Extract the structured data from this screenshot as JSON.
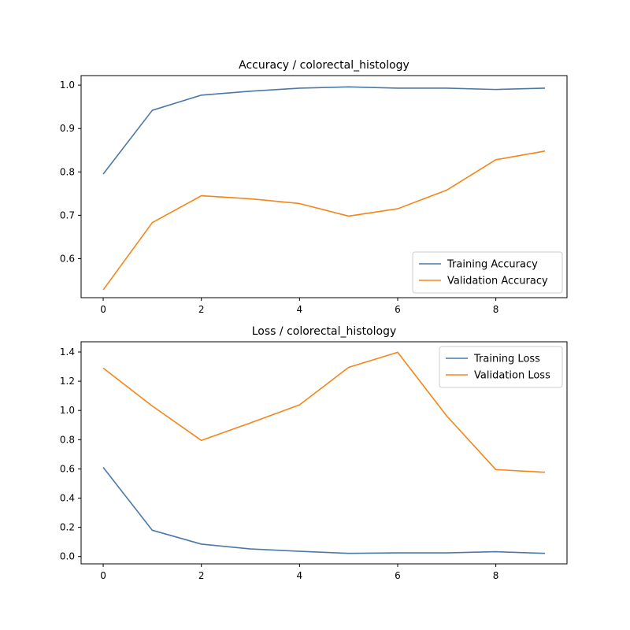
{
  "colors": {
    "training": "#4c78a8",
    "validation": "#f58518"
  },
  "chart_data": [
    {
      "type": "line",
      "title": "Accuracy / colorectal_histology",
      "xlabel": "",
      "ylabel": "",
      "x": [
        0,
        1,
        2,
        3,
        4,
        5,
        6,
        7,
        8,
        9
      ],
      "xlim": [
        -0.45,
        9.45
      ],
      "ylim": [
        0.51,
        1.022
      ],
      "xticks": [
        0,
        2,
        4,
        6,
        8
      ],
      "yticks": [
        0.6,
        0.7,
        0.8,
        0.9,
        1.0
      ],
      "ytick_labels": [
        "0.6",
        "0.7",
        "0.8",
        "0.9",
        "1.0"
      ],
      "grid": false,
      "legend_position": "lower-right",
      "series": [
        {
          "name": "Training Accuracy",
          "color": "training",
          "values": [
            0.795,
            0.942,
            0.977,
            0.986,
            0.993,
            0.996,
            0.993,
            0.993,
            0.99,
            0.993
          ]
        },
        {
          "name": "Validation Accuracy",
          "color": "validation",
          "values": [
            0.528,
            0.683,
            0.745,
            0.738,
            0.727,
            0.698,
            0.715,
            0.758,
            0.828,
            0.848
          ]
        }
      ]
    },
    {
      "type": "line",
      "title": "Loss / colorectal_histology",
      "xlabel": "",
      "ylabel": "",
      "x": [
        0,
        1,
        2,
        3,
        4,
        5,
        6,
        7,
        8,
        9
      ],
      "xlim": [
        -0.45,
        9.45
      ],
      "ylim": [
        -0.05,
        1.47
      ],
      "xticks": [
        0,
        2,
        4,
        6,
        8
      ],
      "yticks": [
        0.0,
        0.2,
        0.4,
        0.6,
        0.8,
        1.0,
        1.2,
        1.4
      ],
      "ytick_labels": [
        "0.0",
        "0.2",
        "0.4",
        "0.6",
        "0.8",
        "1.0",
        "1.2",
        "1.4"
      ],
      "grid": false,
      "legend_position": "upper-right",
      "series": [
        {
          "name": "Training Loss",
          "color": "training",
          "values": [
            0.61,
            0.18,
            0.085,
            0.052,
            0.036,
            0.022,
            0.025,
            0.025,
            0.033,
            0.022
          ]
        },
        {
          "name": "Validation Loss",
          "color": "validation",
          "values": [
            1.29,
            1.03,
            0.795,
            0.915,
            1.038,
            1.295,
            1.398,
            0.962,
            0.595,
            0.577
          ]
        }
      ]
    }
  ]
}
